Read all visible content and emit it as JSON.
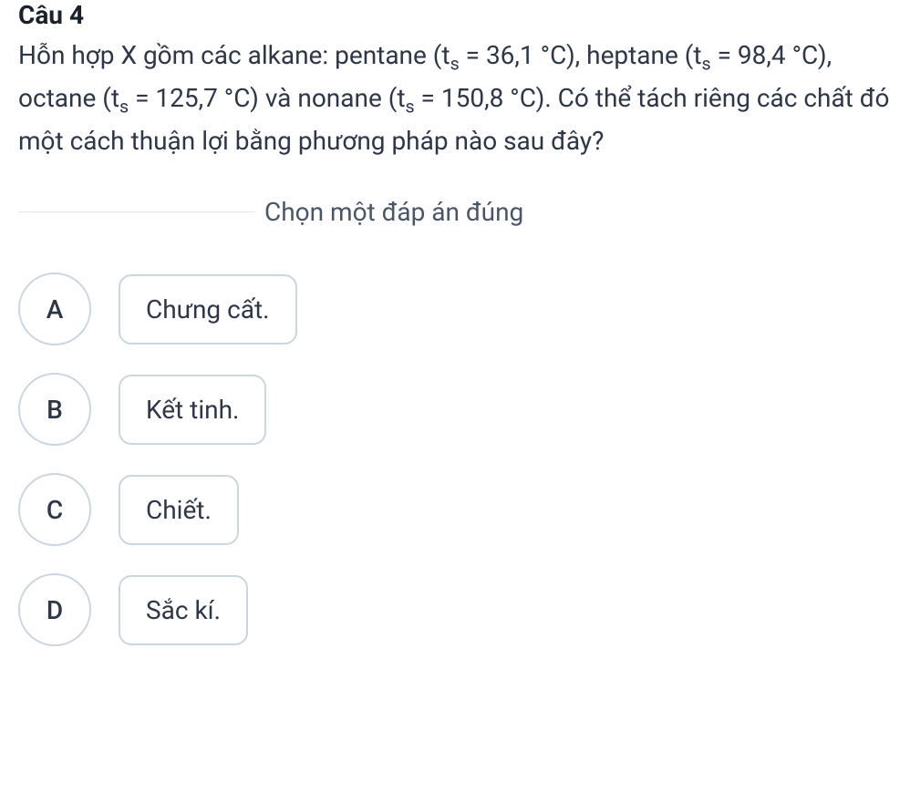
{
  "question": {
    "number": "Câu 4",
    "text_html": "Hỗn hợp X gồm các alkane: pentane (t<sub>s</sub> = 36,1 °C), heptane (t<sub>s</sub> = 98,4 °C), octane (t<sub>s</sub> = 125,7 °C) và nonane (t<sub>s</sub> = 150,8 °C). Có thể tách riêng các chất đó một cách thuận lợi bằng phương pháp nào sau đây?"
  },
  "instruction": "Chọn một đáp án đúng",
  "options": [
    {
      "letter": "A",
      "text": "Chưng cất."
    },
    {
      "letter": "B",
      "text": "Kết tinh."
    },
    {
      "letter": "C",
      "text": "Chiết."
    },
    {
      "letter": "D",
      "text": "Sắc kí."
    }
  ],
  "colors": {
    "text": "#2d3748",
    "heading": "#1a202c",
    "instruction": "#4a5568",
    "border": "#cbd5e0",
    "divider": "#e2e8f0",
    "background": "#ffffff"
  }
}
